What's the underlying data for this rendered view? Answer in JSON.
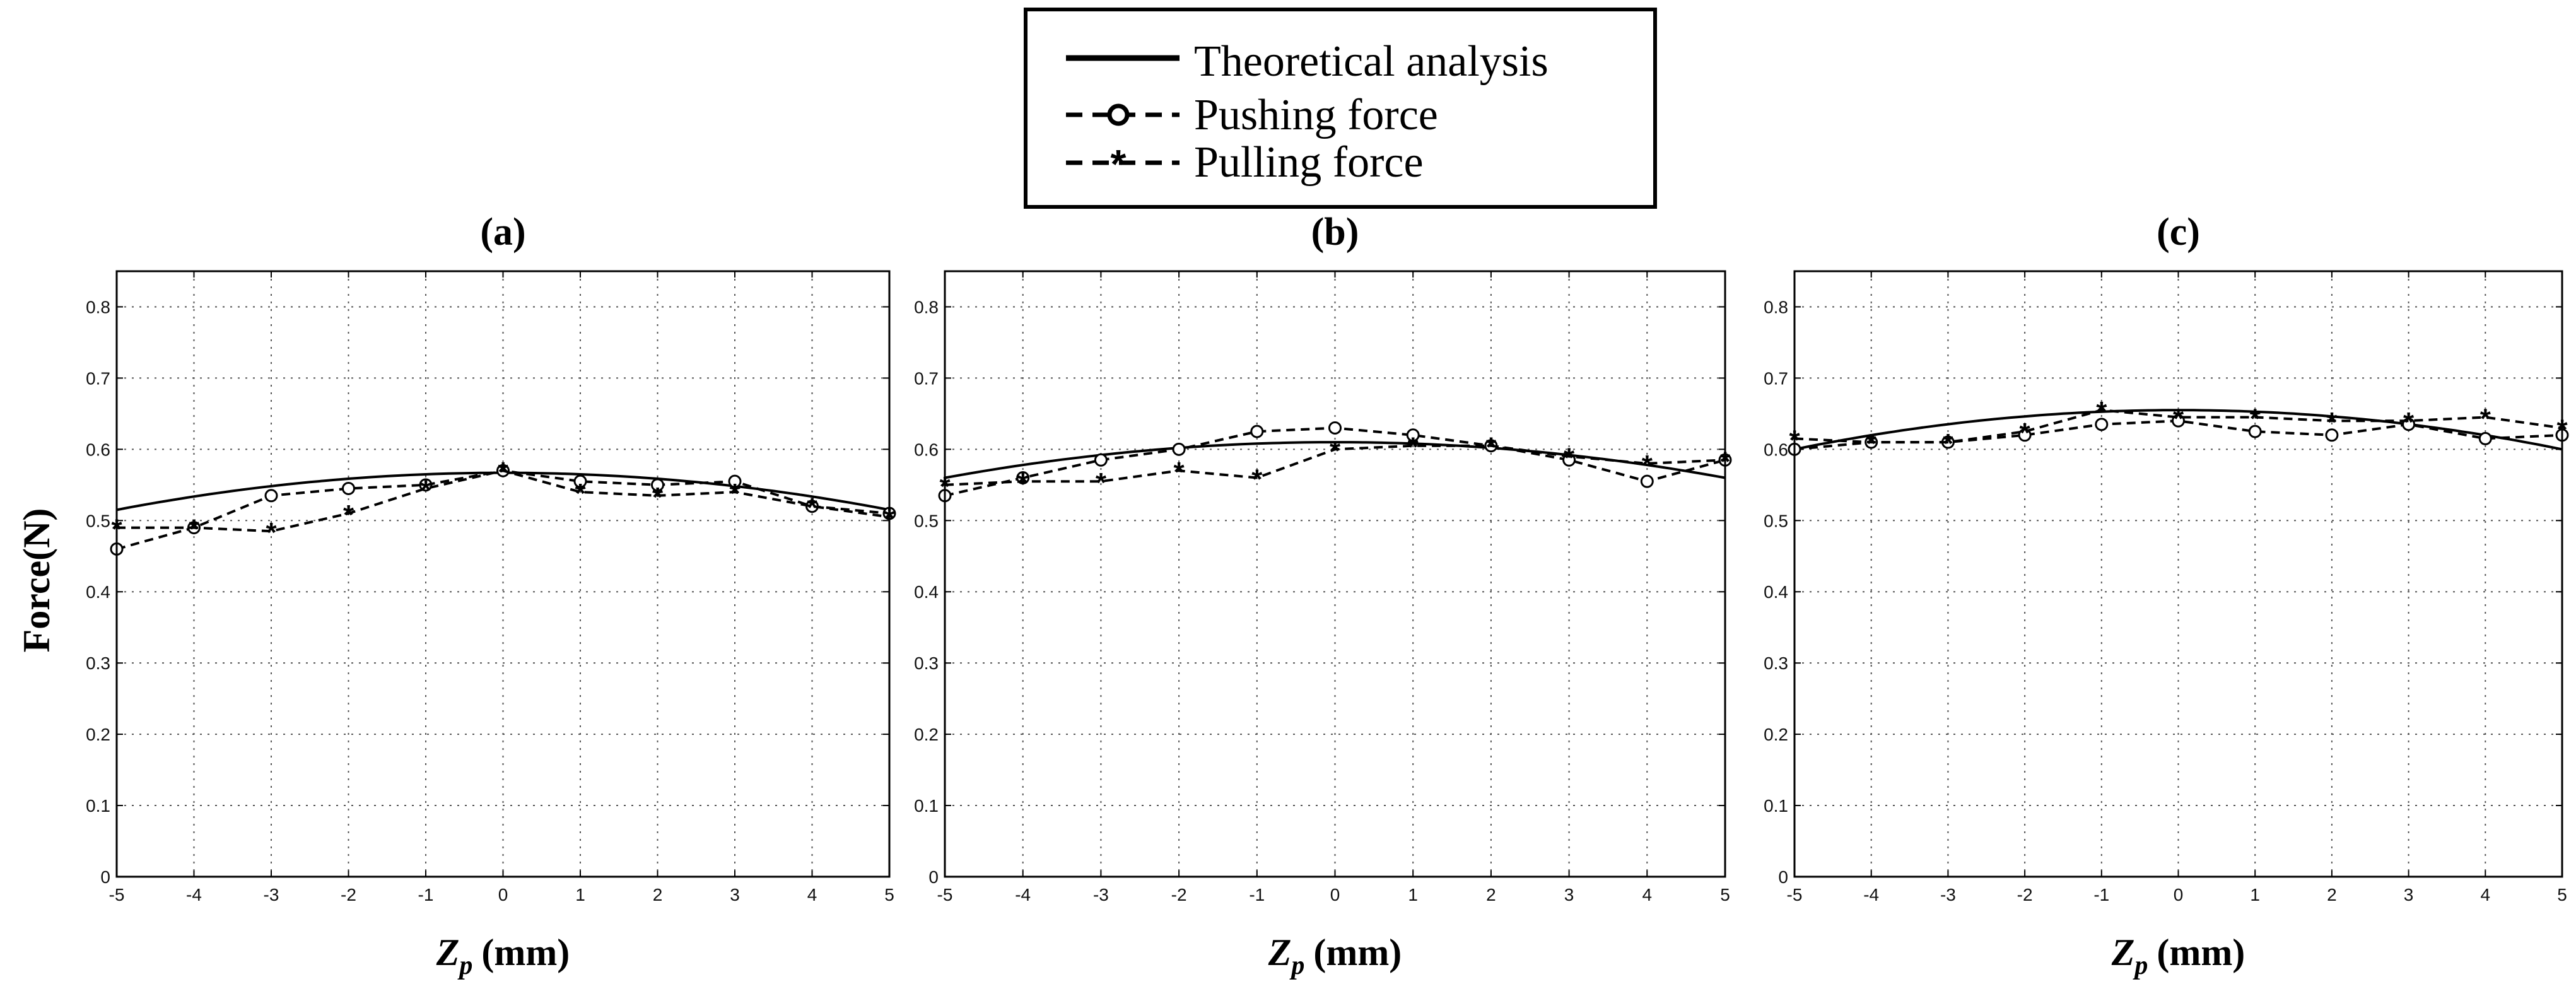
{
  "ylabel": "Force(N)",
  "legend": {
    "entries": [
      "Theoretical analysis",
      "Pushing force",
      "Pulling force"
    ]
  },
  "chart_data": [
    {
      "type": "line",
      "title": "(a)",
      "xlabel_symbol": "Z",
      "xlabel_sub": "p",
      "xlabel_unit": "(mm)",
      "ylabel": "Force(N)",
      "xlim": [
        -5,
        5
      ],
      "ylim": [
        0,
        0.85
      ],
      "xticks": [
        -5,
        -4,
        -3,
        -2,
        -1,
        0,
        1,
        2,
        3,
        4,
        5
      ],
      "yticks": [
        0,
        0.1,
        0.2,
        0.3,
        0.4,
        0.5,
        0.6,
        0.7,
        0.8
      ],
      "grid": true,
      "theory": {
        "name": "Theoretical analysis",
        "vertex_y": 0.567,
        "end_y": 0.515
      },
      "series": [
        {
          "name": "Pushing force",
          "marker": "circle",
          "x": [
            -5,
            -4,
            -3,
            -2,
            -1,
            0,
            1,
            2,
            3,
            4,
            5
          ],
          "values": [
            0.46,
            0.49,
            0.535,
            0.545,
            0.55,
            0.57,
            0.555,
            0.55,
            0.555,
            0.52,
            0.51
          ]
        },
        {
          "name": "Pulling force",
          "marker": "star",
          "x": [
            -5,
            -4,
            -3,
            -2,
            -1,
            0,
            1,
            2,
            3,
            4,
            5
          ],
          "values": [
            0.49,
            0.49,
            0.485,
            0.51,
            0.545,
            0.57,
            0.54,
            0.535,
            0.54,
            0.52,
            0.505
          ]
        }
      ]
    },
    {
      "type": "line",
      "title": "(b)",
      "xlabel_symbol": "Z",
      "xlabel_sub": "p",
      "xlabel_unit": "(mm)",
      "ylabel": "Force(N)",
      "xlim": [
        -5,
        5
      ],
      "ylim": [
        0,
        0.85
      ],
      "xticks": [
        -5,
        -4,
        -3,
        -2,
        -1,
        0,
        1,
        2,
        3,
        4,
        5
      ],
      "yticks": [
        0,
        0.1,
        0.2,
        0.3,
        0.4,
        0.5,
        0.6,
        0.7,
        0.8
      ],
      "grid": true,
      "theory": {
        "name": "Theoretical analysis",
        "vertex_y": 0.61,
        "end_y": 0.56
      },
      "series": [
        {
          "name": "Pushing force",
          "marker": "circle",
          "x": [
            -5,
            -4,
            -3,
            -2,
            -1,
            0,
            1,
            2,
            3,
            4,
            5
          ],
          "values": [
            0.535,
            0.56,
            0.585,
            0.6,
            0.625,
            0.63,
            0.62,
            0.605,
            0.585,
            0.555,
            0.585
          ]
        },
        {
          "name": "Pulling force",
          "marker": "star",
          "x": [
            -5,
            -4,
            -3,
            -2,
            -1,
            0,
            1,
            2,
            3,
            4,
            5
          ],
          "values": [
            0.55,
            0.555,
            0.555,
            0.57,
            0.56,
            0.6,
            0.605,
            0.605,
            0.59,
            0.58,
            0.585
          ]
        }
      ]
    },
    {
      "type": "line",
      "title": "(c)",
      "xlabel_symbol": "Z",
      "xlabel_sub": "p",
      "xlabel_unit": "(mm)",
      "ylabel": "Force(N)",
      "xlim": [
        -5,
        5
      ],
      "ylim": [
        0,
        0.85
      ],
      "xticks": [
        -5,
        -4,
        -3,
        -2,
        -1,
        0,
        1,
        2,
        3,
        4,
        5
      ],
      "yticks": [
        0,
        0.1,
        0.2,
        0.3,
        0.4,
        0.5,
        0.6,
        0.7,
        0.8
      ],
      "grid": true,
      "theory": {
        "name": "Theoretical analysis",
        "vertex_y": 0.655,
        "end_y": 0.6
      },
      "series": [
        {
          "name": "Pushing force",
          "marker": "circle",
          "x": [
            -5,
            -4,
            -3,
            -2,
            -1,
            0,
            1,
            2,
            3,
            4,
            5
          ],
          "values": [
            0.6,
            0.61,
            0.61,
            0.62,
            0.635,
            0.64,
            0.625,
            0.62,
            0.635,
            0.615,
            0.62
          ]
        },
        {
          "name": "Pulling force",
          "marker": "star",
          "x": [
            -5,
            -4,
            -3,
            -2,
            -1,
            0,
            1,
            2,
            3,
            4,
            5
          ],
          "values": [
            0.615,
            0.61,
            0.61,
            0.625,
            0.655,
            0.645,
            0.645,
            0.64,
            0.64,
            0.645,
            0.63
          ]
        }
      ]
    }
  ]
}
